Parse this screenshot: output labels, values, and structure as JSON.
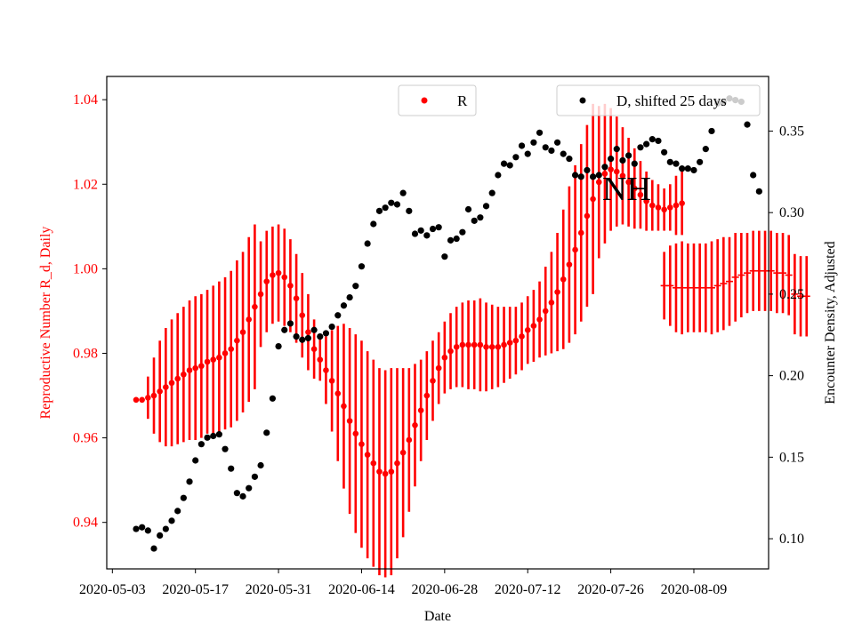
{
  "chart_data": {
    "type": "scatter",
    "title": "",
    "annotation": "NH",
    "xlabel": "Date",
    "ylabel_left": "Reproductive Number R_d, Daily",
    "ylabel_right": "Encounter Density, Adjusted",
    "x_ticks": [
      "2020-05-03",
      "2020-05-17",
      "2020-05-31",
      "2020-06-14",
      "2020-06-28",
      "2020-07-12",
      "2020-07-26",
      "2020-08-09"
    ],
    "y_left_ticks": [
      "0.94",
      "0.96",
      "0.98",
      "1.00",
      "1.02",
      "1.04"
    ],
    "y_right_ticks": [
      "0.10",
      "0.15",
      "0.20",
      "0.25",
      "0.30",
      "0.35"
    ],
    "ylim_left": [
      0.929,
      1.0455
    ],
    "ylim_right": [
      0.0815,
      0.3835
    ],
    "colors": {
      "r_series": "#ff0000",
      "d_series": "#000000",
      "axis_left_text": "#ff0000"
    },
    "legend": [
      {
        "label": "R",
        "color": "#ff0000",
        "position": "top-center"
      },
      {
        "label": "D, shifted 25 days",
        "color": "#000000",
        "position": "top-right"
      }
    ],
    "series_R": {
      "name": "R",
      "start_day": 0,
      "values": [
        0.969,
        0.969,
        0.9695,
        0.97,
        0.971,
        0.972,
        0.973,
        0.974,
        0.975,
        0.976,
        0.9765,
        0.977,
        0.978,
        0.9785,
        0.979,
        0.98,
        0.981,
        0.983,
        0.985,
        0.988,
        0.991,
        0.994,
        0.997,
        0.9985,
        0.999,
        0.998,
        0.996,
        0.993,
        0.989,
        0.985,
        0.981,
        0.9785,
        0.976,
        0.9735,
        0.9705,
        0.9675,
        0.964,
        0.961,
        0.9585,
        0.956,
        0.954,
        0.952,
        0.9515,
        0.952,
        0.954,
        0.9565,
        0.9595,
        0.963,
        0.9665,
        0.97,
        0.9735,
        0.9765,
        0.979,
        0.9805,
        0.9815,
        0.982,
        0.982,
        0.982,
        0.982,
        0.9815,
        0.9815,
        0.9815,
        0.982,
        0.9825,
        0.983,
        0.984,
        0.9855,
        0.9865,
        0.988,
        0.99,
        0.992,
        0.9945,
        0.9975,
        1.001,
        1.0045,
        1.0085,
        1.0125,
        1.0165,
        1.0205,
        1.0225,
        1.0235,
        1.023,
        1.022,
        1.0205,
        1.019,
        1.0175,
        1.016,
        1.015,
        1.0145,
        1.014,
        1.0145,
        1.015,
        1.0155
      ],
      "errors": [
        0,
        0,
        0.005,
        0.009,
        0.012,
        0.014,
        0.015,
        0.0155,
        0.016,
        0.0165,
        0.017,
        0.017,
        0.017,
        0.0175,
        0.018,
        0.018,
        0.0185,
        0.019,
        0.019,
        0.0195,
        0.0195,
        0.0125,
        0.012,
        0.0115,
        0.0115,
        0.0115,
        0.011,
        0.0105,
        0.01,
        0.009,
        0.007,
        0.005,
        0.008,
        0.012,
        0.016,
        0.0195,
        0.022,
        0.0235,
        0.0245,
        0.0245,
        0.0245,
        0.0245,
        0.0245,
        0.0245,
        0.0225,
        0.02,
        0.017,
        0.0145,
        0.012,
        0.0105,
        0.0095,
        0.0085,
        0.0085,
        0.009,
        0.0095,
        0.01,
        0.0105,
        0.0105,
        0.011,
        0.0105,
        0.01,
        0.0095,
        0.009,
        0.0085,
        0.008,
        0.008,
        0.008,
        0.0085,
        0.009,
        0.0105,
        0.012,
        0.014,
        0.0165,
        0.0185,
        0.02,
        0.021,
        0.0215,
        0.0225,
        0.018,
        0.0165,
        0.0145,
        0.013,
        0.0115,
        0.0105,
        0.0095,
        0.008,
        0.007,
        0.006,
        0.0055,
        0.005,
        0.0055,
        0.007,
        0.0075
      ]
    },
    "series_R_late": {
      "name": "R (late)",
      "start_day": 89,
      "values": [
        0.996,
        0.996,
        0.9955,
        0.9955,
        0.9955,
        0.9955,
        0.9955,
        0.9955,
        0.9955,
        0.996,
        0.9965,
        0.997,
        0.998,
        0.9985,
        0.999,
        0.9995,
        0.9995,
        0.9995,
        0.9995,
        0.999,
        0.999,
        0.9985,
        0.994,
        0.9935,
        0.9935
      ],
      "errors": [
        0.008,
        0.0095,
        0.0105,
        0.011,
        0.0105,
        0.0105,
        0.0105,
        0.0105,
        0.011,
        0.011,
        0.011,
        0.0105,
        0.0105,
        0.01,
        0.0095,
        0.0095,
        0.0095,
        0.0095,
        0.0095,
        0.0095,
        0.0095,
        0.0095,
        0.0095,
        0.0095,
        0.0095
      ]
    },
    "series_D": {
      "name": "D, shifted 25 days",
      "start_day": 0,
      "values": [
        0.106,
        0.107,
        0.105,
        0.094,
        0.102,
        0.106,
        0.111,
        0.117,
        0.125,
        0.135,
        0.148,
        0.158,
        0.162,
        0.163,
        0.164,
        0.155,
        0.143,
        0.128,
        0.126,
        0.131,
        0.138,
        0.145,
        0.165,
        0.186,
        0.218,
        0.228,
        0.232,
        0.224,
        0.222,
        0.223,
        0.228,
        0.224,
        0.226,
        0.23,
        0.237,
        0.243,
        0.248,
        0.255,
        0.267,
        0.281,
        0.293,
        0.301,
        0.303,
        0.306,
        0.305,
        0.312,
        0.301,
        0.287,
        0.289,
        0.286,
        0.29,
        0.291,
        0.273,
        0.283,
        0.284,
        0.288,
        0.302,
        0.295,
        0.297,
        0.304,
        0.312,
        0.323,
        0.33,
        0.329,
        0.334,
        0.341,
        0.336,
        0.343,
        0.349,
        0.34,
        0.338,
        0.343,
        0.336,
        0.333,
        0.323,
        0.322,
        0.326,
        0.322,
        0.323,
        0.328,
        0.333,
        0.339,
        0.332,
        0.335,
        0.33,
        0.34,
        0.342,
        0.345,
        0.344,
        0.337,
        0.331,
        0.33,
        0.327,
        0.327,
        0.326,
        0.331,
        0.339,
        0.35,
        0.367,
        0.368,
        0.37,
        0.369,
        0.368,
        0.354,
        0.323,
        0.313
      ]
    }
  }
}
